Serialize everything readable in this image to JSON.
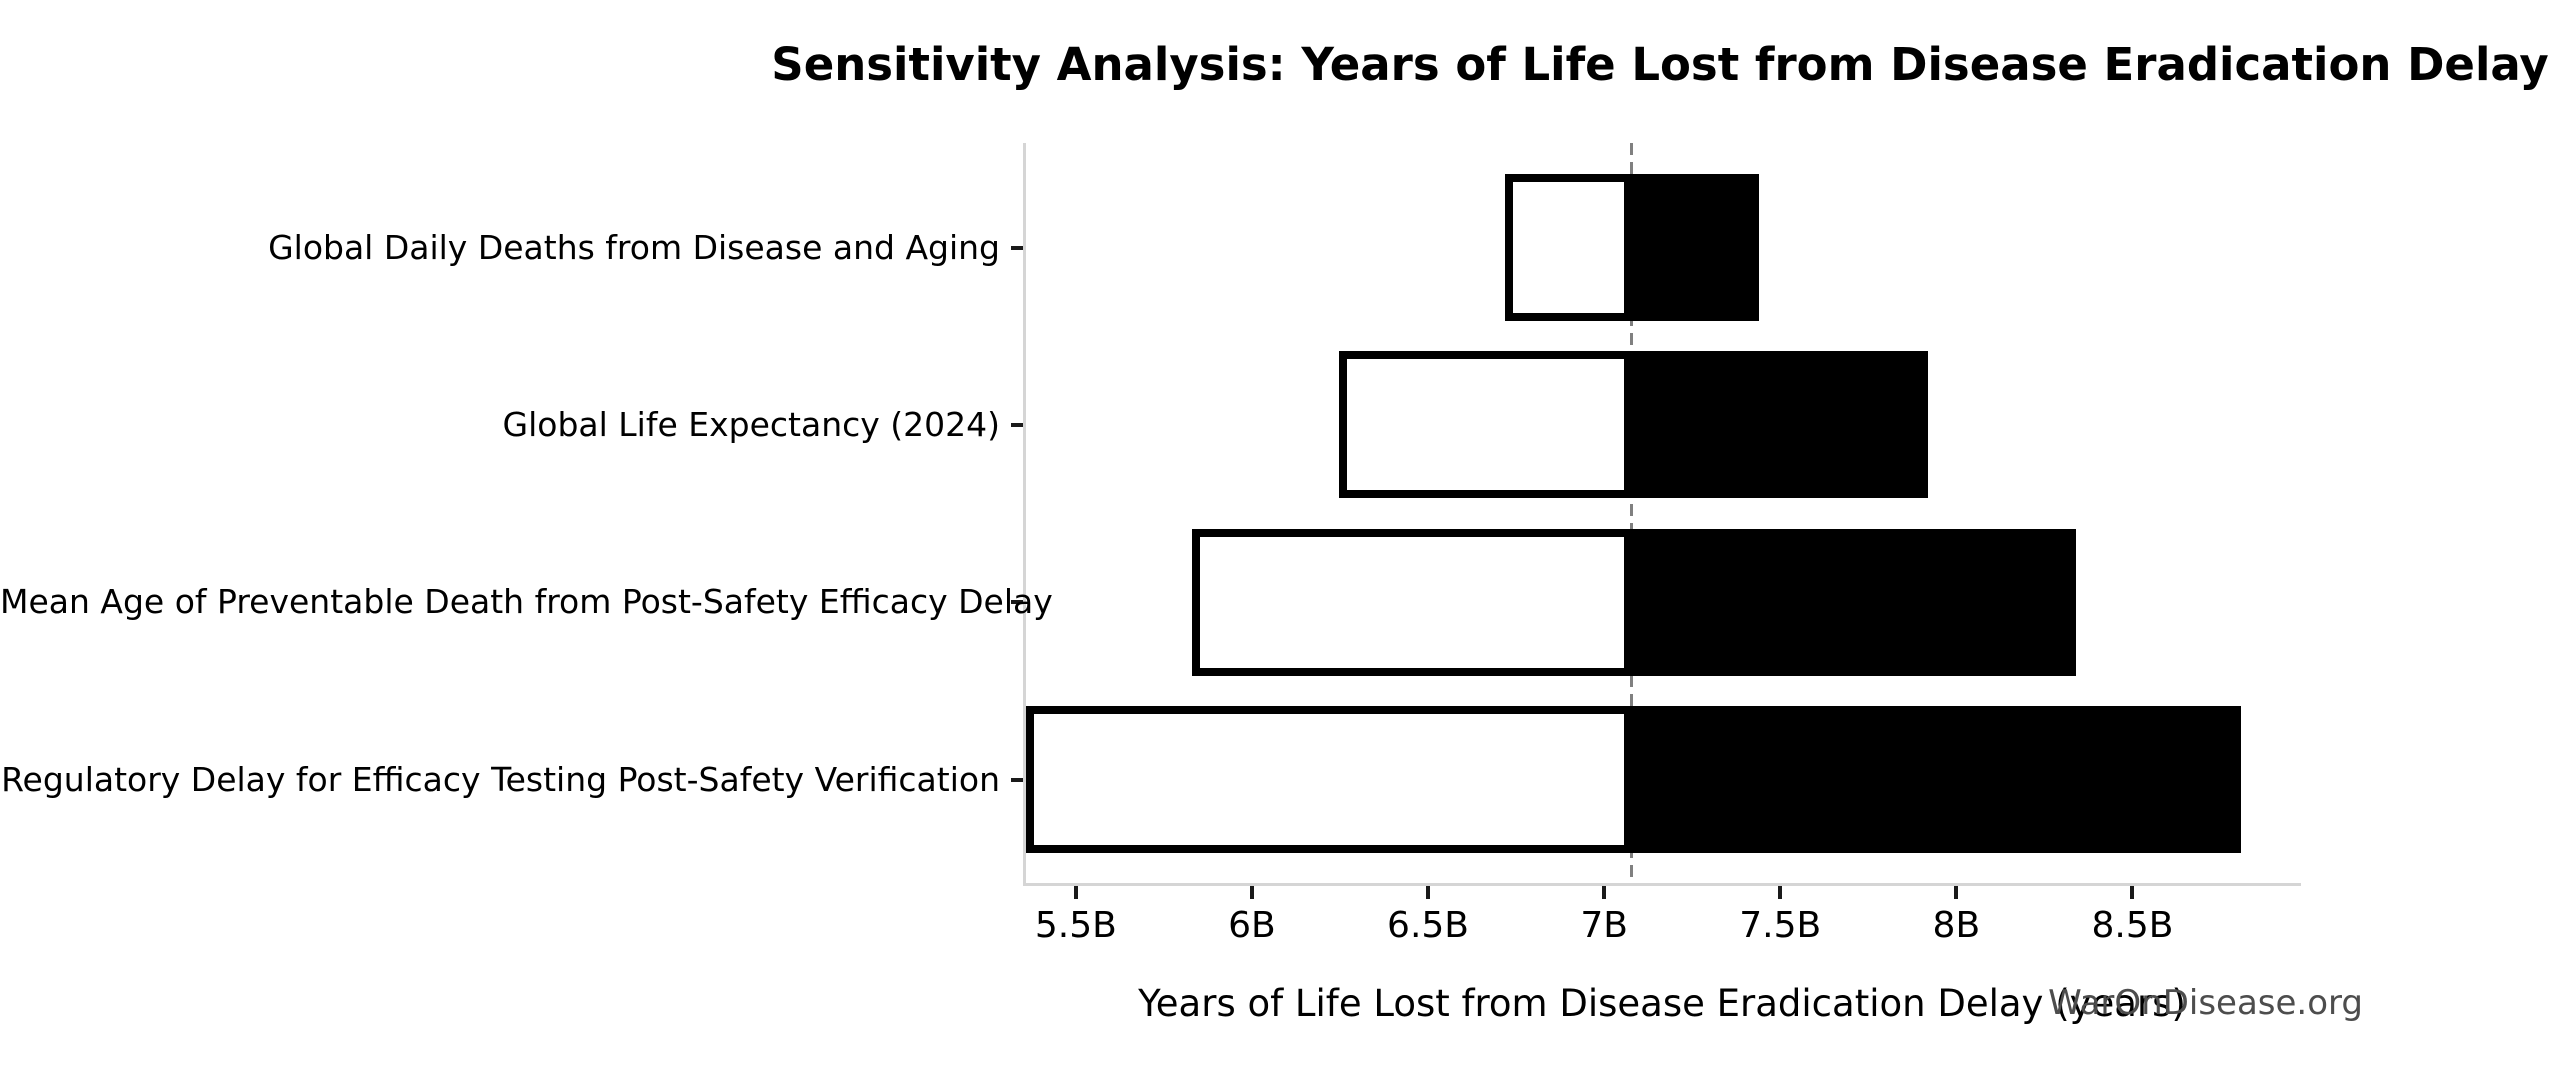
{
  "chart_data": {
    "type": "bar",
    "variant": "tornado-sensitivity",
    "title": "Sensitivity Analysis: Years of Life Lost from Disease Eradication Delay",
    "xlabel": "Years of Life Lost from Disease Eradication Delay (years)",
    "watermark": "WarOnDisease.org",
    "baseline": 7.07,
    "xlim": [
      5.35,
      8.97
    ],
    "unit_suffix": "B",
    "categories": [
      "Global Daily Deaths from Disease and Aging",
      "Global Life Expectancy (2024)",
      "Mean Age of Preventable Death from Post-Safety Efficacy Delay",
      "Regulatory Delay for Efficacy Testing Post-Safety Verification"
    ],
    "series": [
      {
        "name": "low",
        "values": [
          6.71,
          6.24,
          5.82,
          5.35
        ]
      },
      {
        "name": "high",
        "values": [
          7.43,
          7.91,
          8.33,
          8.8
        ]
      }
    ],
    "xticks": [
      {
        "value": 5.5,
        "label": "5.5B"
      },
      {
        "value": 6.0,
        "label": "6B"
      },
      {
        "value": 6.5,
        "label": "6.5B"
      },
      {
        "value": 7.0,
        "label": "7B"
      },
      {
        "value": 7.5,
        "label": "7.5B"
      },
      {
        "value": 8.0,
        "label": "8B"
      },
      {
        "value": 8.5,
        "label": "8.5B"
      }
    ],
    "grid": false,
    "legend": "none",
    "colors": {
      "high_bar": "#000000",
      "low_bar_fill": "#ffffff",
      "low_bar_edge": "#000000",
      "baseline_line": "#808080",
      "spine": "#d5d5d5",
      "tick": "#1a1a1a",
      "text": "#000000",
      "watermark": "#4d4d4d"
    }
  }
}
